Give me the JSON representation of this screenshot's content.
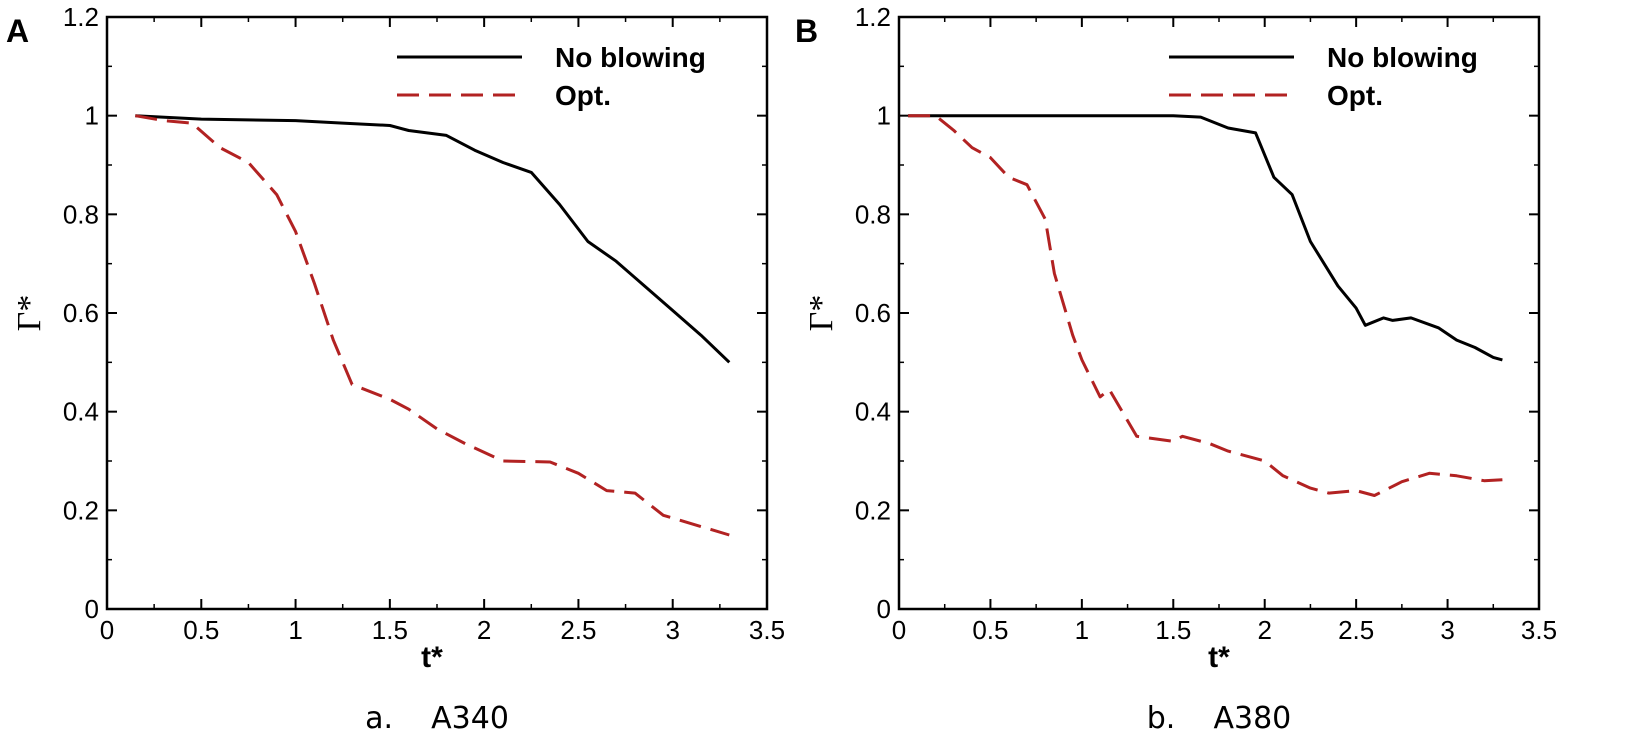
{
  "chart_data": [
    {
      "type": "line",
      "panel_label": "A",
      "caption": "a.    A340",
      "xlabel": "t*",
      "ylabel": "Γ*",
      "xlim": [
        0,
        3.5
      ],
      "ylim": [
        0,
        1.2
      ],
      "x_ticks": [
        "0",
        "0.5",
        "1",
        "1.5",
        "2",
        "2.5",
        "3",
        "3.5"
      ],
      "y_ticks": [
        "0",
        "0.2",
        "0.4",
        "0.6",
        "0.8",
        "1",
        "1.2"
      ],
      "legend_position": "top-right",
      "series": [
        {
          "name": "No blowing",
          "color": "#000000",
          "dash": "solid",
          "points": [
            [
              0.15,
              1.0
            ],
            [
              0.5,
              0.993
            ],
            [
              1.0,
              0.99
            ],
            [
              1.25,
              0.985
            ],
            [
              1.5,
              0.98
            ],
            [
              1.6,
              0.97
            ],
            [
              1.8,
              0.96
            ],
            [
              1.95,
              0.93
            ],
            [
              2.1,
              0.905
            ],
            [
              2.25,
              0.885
            ],
            [
              2.4,
              0.82
            ],
            [
              2.55,
              0.745
            ],
            [
              2.7,
              0.705
            ],
            [
              2.85,
              0.655
            ],
            [
              3.0,
              0.605
            ],
            [
              3.15,
              0.555
            ],
            [
              3.3,
              0.5
            ]
          ]
        },
        {
          "name": "Opt.",
          "color": "#b22222",
          "dash": "dashed",
          "points": [
            [
              0.15,
              1.0
            ],
            [
              0.3,
              0.99
            ],
            [
              0.45,
              0.985
            ],
            [
              0.6,
              0.935
            ],
            [
              0.75,
              0.905
            ],
            [
              0.9,
              0.84
            ],
            [
              1.0,
              0.765
            ],
            [
              1.1,
              0.66
            ],
            [
              1.2,
              0.545
            ],
            [
              1.3,
              0.455
            ],
            [
              1.5,
              0.425
            ],
            [
              1.6,
              0.405
            ],
            [
              1.75,
              0.365
            ],
            [
              1.9,
              0.335
            ],
            [
              2.1,
              0.3
            ],
            [
              2.35,
              0.298
            ],
            [
              2.5,
              0.275
            ],
            [
              2.65,
              0.24
            ],
            [
              2.8,
              0.235
            ],
            [
              2.95,
              0.19
            ],
            [
              3.3,
              0.15
            ]
          ]
        }
      ]
    },
    {
      "type": "line",
      "panel_label": "B",
      "caption": "b.    A380",
      "xlabel": "t*",
      "ylabel": "Γ*",
      "xlim": [
        0,
        3.5
      ],
      "ylim": [
        0,
        1.2
      ],
      "x_ticks": [
        "0",
        "0.5",
        "1",
        "1.5",
        "2",
        "2.5",
        "3",
        "3.5"
      ],
      "y_ticks": [
        "0",
        "0.2",
        "0.4",
        "0.6",
        "0.8",
        "1",
        "1.2"
      ],
      "legend_position": "top-right",
      "series": [
        {
          "name": "No blowing",
          "color": "#000000",
          "dash": "solid",
          "points": [
            [
              0.05,
              1.0
            ],
            [
              0.5,
              1.0
            ],
            [
              0.75,
              1.0
            ],
            [
              1.0,
              1.0
            ],
            [
              1.3,
              1.0
            ],
            [
              1.5,
              1.0
            ],
            [
              1.65,
              0.997
            ],
            [
              1.8,
              0.975
            ],
            [
              1.95,
              0.965
            ],
            [
              2.05,
              0.875
            ],
            [
              2.15,
              0.84
            ],
            [
              2.25,
              0.745
            ],
            [
              2.4,
              0.655
            ],
            [
              2.5,
              0.61
            ],
            [
              2.55,
              0.575
            ],
            [
              2.65,
              0.59
            ],
            [
              2.7,
              0.585
            ],
            [
              2.8,
              0.59
            ],
            [
              2.95,
              0.57
            ],
            [
              3.05,
              0.545
            ],
            [
              3.15,
              0.53
            ],
            [
              3.25,
              0.51
            ],
            [
              3.3,
              0.505
            ]
          ]
        },
        {
          "name": "Opt.",
          "color": "#b22222",
          "dash": "dashed",
          "points": [
            [
              0.05,
              1.0
            ],
            [
              0.2,
              1.0
            ],
            [
              0.3,
              0.97
            ],
            [
              0.4,
              0.935
            ],
            [
              0.5,
              0.915
            ],
            [
              0.6,
              0.875
            ],
            [
              0.7,
              0.86
            ],
            [
              0.8,
              0.79
            ],
            [
              0.85,
              0.68
            ],
            [
              0.95,
              0.555
            ],
            [
              1.0,
              0.505
            ],
            [
              1.1,
              0.43
            ],
            [
              1.15,
              0.445
            ],
            [
              1.3,
              0.35
            ],
            [
              1.5,
              0.34
            ],
            [
              1.55,
              0.35
            ],
            [
              1.7,
              0.335
            ],
            [
              1.8,
              0.32
            ],
            [
              2.0,
              0.3
            ],
            [
              2.1,
              0.27
            ],
            [
              2.25,
              0.245
            ],
            [
              2.35,
              0.235
            ],
            [
              2.5,
              0.24
            ],
            [
              2.6,
              0.23
            ],
            [
              2.75,
              0.258
            ],
            [
              2.9,
              0.275
            ],
            [
              3.05,
              0.27
            ],
            [
              3.2,
              0.26
            ],
            [
              3.3,
              0.262
            ]
          ]
        }
      ]
    }
  ]
}
